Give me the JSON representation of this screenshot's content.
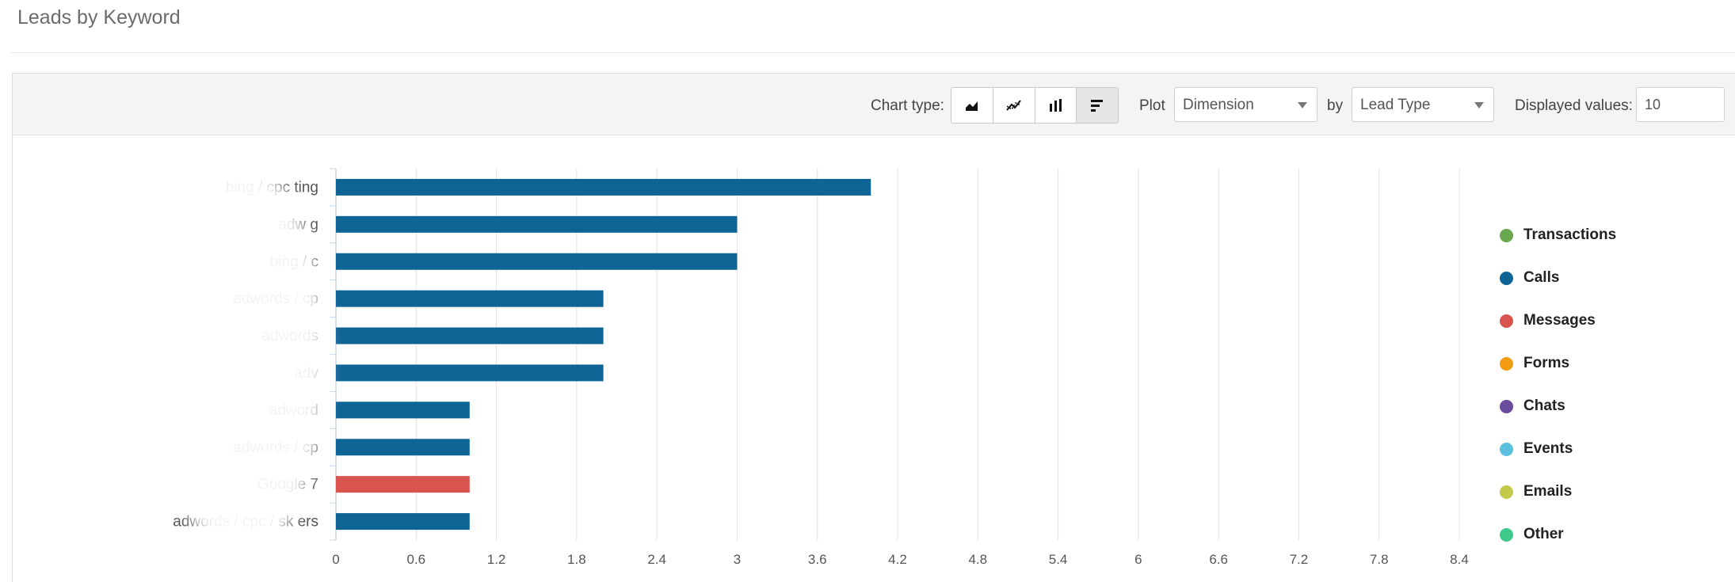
{
  "page": {
    "title": "Leads by Keyword"
  },
  "toolbar": {
    "chart_type_label": "Chart type:",
    "chart_types": [
      {
        "name": "area",
        "icon": "area-chart-icon"
      },
      {
        "name": "line",
        "icon": "line-chart-icon"
      },
      {
        "name": "column",
        "icon": "column-chart-icon"
      },
      {
        "name": "bar",
        "icon": "bar-chart-icon",
        "active": true
      }
    ],
    "plot_label": "Plot",
    "plot_value": "Dimension",
    "by_label": "by",
    "by_value": "Lead Type",
    "displayed_values_label": "Displayed values:",
    "displayed_values": "10"
  },
  "colors": {
    "Transactions": "#6aa84f",
    "Calls": "#0f6496",
    "Messages": "#d9534f",
    "Forms": "#f39c12",
    "Chats": "#6a4c9c",
    "Events": "#5bc0de",
    "Emails": "#c3c94a",
    "Other": "#3cc98a"
  },
  "chart_data": {
    "type": "bar",
    "orientation": "horizontal",
    "title": "",
    "xlabel": "",
    "ylabel": "",
    "categories": [
      "bing / cpc ting",
      "adw g",
      "bing / c",
      "adwords / cp",
      "adwords",
      "adv",
      "adword",
      "adwords / cp",
      "Google 7",
      "adwords / cpc / sk ers"
    ],
    "series": [
      {
        "name": "Calls",
        "values": [
          4,
          3,
          3,
          2,
          2,
          2,
          1,
          1,
          0,
          1
        ]
      },
      {
        "name": "Messages",
        "values": [
          0,
          0,
          0,
          0,
          0,
          0,
          0,
          0,
          1,
          0
        ]
      }
    ],
    "xlim": [
      0,
      8.4
    ],
    "xticks": [
      "0",
      "0.6",
      "1.2",
      "1.8",
      "2.4",
      "3",
      "3.6",
      "4.2",
      "4.8",
      "5.4",
      "6",
      "6.6",
      "7.2",
      "7.8",
      "8.4"
    ],
    "grid": true,
    "legend": {
      "position": "right",
      "items": [
        "Transactions",
        "Calls",
        "Messages",
        "Forms",
        "Chats",
        "Events",
        "Emails",
        "Other"
      ]
    }
  }
}
